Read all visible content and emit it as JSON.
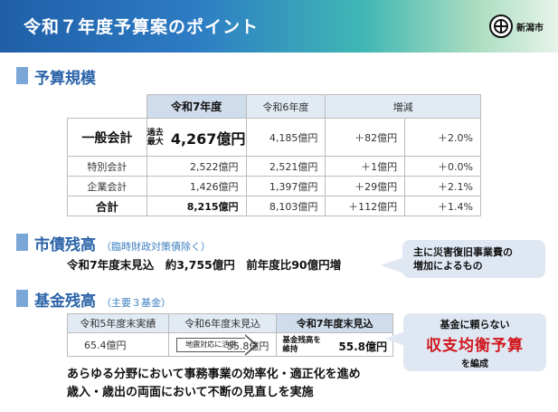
{
  "header": {
    "title": "令和７年度予算案のポイント",
    "city_name": "新潟市"
  },
  "budget_section": {
    "title": "予算規模",
    "columns": [
      "令和7年度",
      "令和6年度",
      "増減"
    ],
    "rows": [
      {
        "label": "一般会計",
        "note": "過去最大",
        "note_line1": "過去",
        "note_line2": "最大",
        "r7": "4,267億円",
        "r6": "4,185億円",
        "diff": "＋82億円",
        "pct": "＋2.0%"
      },
      {
        "label": "特別会計",
        "r7": "2,522億円",
        "r6": "2,521億円",
        "diff": "＋1億円",
        "pct": "＋0.0%"
      },
      {
        "label": "企業会計",
        "r7": "1,426億円",
        "r6": "1,397億円",
        "diff": "＋29億円",
        "pct": "＋2.1%"
      },
      {
        "label": "合計",
        "r7": "8,215億円",
        "r6": "8,103億円",
        "diff": "＋112億円",
        "pct": "＋1.4%"
      }
    ]
  },
  "debt_section": {
    "title": "市債残高",
    "note": "（臨時財政対策債除く）",
    "line": "令和7年度末見込　約3,755億円　前年度比90億円増",
    "callout": {
      "line1": "主に災害復旧事業費の",
      "line2": "増加によるもの"
    }
  },
  "fund_section": {
    "title": "基金残高",
    "note": "（主要３基金）",
    "headers": [
      "令和5年度末実績",
      "令和6年度末見込",
      "令和7年度末見込"
    ],
    "r5": "65.4億円",
    "arrow_label": "地震対応に活用",
    "r6": "55.8億円",
    "maintain_line1": "基金残高を",
    "maintain_line2": "維持",
    "r7": "55.8億円",
    "callout": {
      "line1": "基金に頼らない",
      "line2": "収支均衡予算",
      "line3": "を編成"
    }
  },
  "closing": {
    "line1": "あらゆる分野において事務事業の効率化・適正化を進め",
    "line2": "歳入・歳出の両面において不断の見直しを実施"
  }
}
